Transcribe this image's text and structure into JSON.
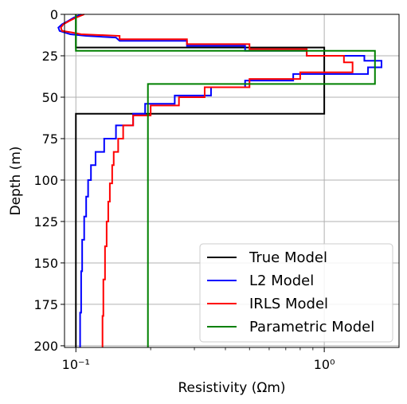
{
  "chart_data": {
    "type": "line",
    "xlabel": "Resistivity (Ωm)",
    "ylabel": "Depth (m)",
    "x_scale": "log",
    "xlim": [
      0.09,
      2.0
    ],
    "ylim": [
      201,
      0
    ],
    "x_major_ticks": [
      0.1,
      1.0
    ],
    "x_tick_labels": [
      "10⁻¹",
      "10⁰"
    ],
    "y_ticks": [
      0,
      25,
      50,
      75,
      100,
      125,
      150,
      175,
      200
    ],
    "y_tick_labels": [
      "0",
      "25",
      "50",
      "75",
      "100",
      "125",
      "150",
      "175",
      "200"
    ],
    "grid": true,
    "legend_position": "bottom-right",
    "series": [
      {
        "name": "True Model",
        "color": "#000000",
        "points": [
          [
            0.1,
            0
          ],
          [
            0.1,
            20
          ],
          [
            1.0,
            20
          ],
          [
            1.0,
            60
          ],
          [
            0.1,
            60
          ],
          [
            0.1,
            201
          ]
        ]
      },
      {
        "name": "L2 Model",
        "color": "#0000ff",
        "points": [
          [
            0.105,
            0
          ],
          [
            0.098,
            2
          ],
          [
            0.093,
            4
          ],
          [
            0.088,
            6
          ],
          [
            0.085,
            8
          ],
          [
            0.086,
            10
          ],
          [
            0.095,
            12
          ],
          [
            0.11,
            13
          ],
          [
            0.145,
            14
          ],
          [
            0.15,
            16
          ],
          [
            0.28,
            16
          ],
          [
            0.28,
            19
          ],
          [
            0.48,
            19
          ],
          [
            0.48,
            22
          ],
          [
            0.85,
            22
          ],
          [
            0.85,
            25
          ],
          [
            1.45,
            25
          ],
          [
            1.45,
            28
          ],
          [
            1.7,
            28
          ],
          [
            1.7,
            32
          ],
          [
            1.5,
            32
          ],
          [
            1.5,
            36
          ],
          [
            0.75,
            36
          ],
          [
            0.75,
            40
          ],
          [
            0.48,
            40
          ],
          [
            0.48,
            44
          ],
          [
            0.35,
            44
          ],
          [
            0.35,
            49
          ],
          [
            0.25,
            49
          ],
          [
            0.25,
            54
          ],
          [
            0.19,
            54
          ],
          [
            0.19,
            60
          ],
          [
            0.17,
            60
          ],
          [
            0.17,
            67
          ],
          [
            0.145,
            67
          ],
          [
            0.145,
            75
          ],
          [
            0.13,
            75
          ],
          [
            0.13,
            83
          ],
          [
            0.12,
            83
          ],
          [
            0.12,
            91
          ],
          [
            0.115,
            91
          ],
          [
            0.115,
            100
          ],
          [
            0.112,
            100
          ],
          [
            0.112,
            110
          ],
          [
            0.11,
            110
          ],
          [
            0.11,
            122
          ],
          [
            0.108,
            122
          ],
          [
            0.108,
            136
          ],
          [
            0.106,
            136
          ],
          [
            0.106,
            155
          ],
          [
            0.105,
            155
          ],
          [
            0.105,
            180
          ],
          [
            0.104,
            180
          ],
          [
            0.104,
            201
          ]
        ]
      },
      {
        "name": "IRLS Model",
        "color": "#ff0000",
        "points": [
          [
            0.108,
            0
          ],
          [
            0.1,
            2
          ],
          [
            0.094,
            4
          ],
          [
            0.089,
            6
          ],
          [
            0.087,
            8
          ],
          [
            0.088,
            10
          ],
          [
            0.097,
            11
          ],
          [
            0.105,
            12
          ],
          [
            0.15,
            13
          ],
          [
            0.15,
            15
          ],
          [
            0.28,
            15
          ],
          [
            0.28,
            18
          ],
          [
            0.5,
            18
          ],
          [
            0.5,
            21
          ],
          [
            0.85,
            21
          ],
          [
            0.85,
            25
          ],
          [
            1.2,
            25
          ],
          [
            1.2,
            29
          ],
          [
            1.3,
            29
          ],
          [
            1.3,
            35
          ],
          [
            0.8,
            35
          ],
          [
            0.8,
            39
          ],
          [
            0.5,
            39
          ],
          [
            0.5,
            44
          ],
          [
            0.33,
            44
          ],
          [
            0.33,
            50
          ],
          [
            0.26,
            50
          ],
          [
            0.26,
            55
          ],
          [
            0.2,
            55
          ],
          [
            0.2,
            61
          ],
          [
            0.17,
            61
          ],
          [
            0.17,
            67
          ],
          [
            0.155,
            67
          ],
          [
            0.155,
            75
          ],
          [
            0.148,
            75
          ],
          [
            0.148,
            83
          ],
          [
            0.142,
            83
          ],
          [
            0.142,
            91
          ],
          [
            0.14,
            91
          ],
          [
            0.14,
            102
          ],
          [
            0.137,
            102
          ],
          [
            0.137,
            113
          ],
          [
            0.135,
            113
          ],
          [
            0.135,
            125
          ],
          [
            0.133,
            125
          ],
          [
            0.133,
            140
          ],
          [
            0.131,
            140
          ],
          [
            0.131,
            160
          ],
          [
            0.129,
            160
          ],
          [
            0.129,
            182
          ],
          [
            0.128,
            182
          ],
          [
            0.128,
            201
          ]
        ]
      },
      {
        "name": "Parametric Model",
        "color": "#008000",
        "points": [
          [
            0.1,
            0
          ],
          [
            0.1,
            22
          ],
          [
            1.6,
            22
          ],
          [
            1.6,
            42
          ],
          [
            0.195,
            42
          ],
          [
            0.195,
            201
          ]
        ]
      }
    ]
  }
}
